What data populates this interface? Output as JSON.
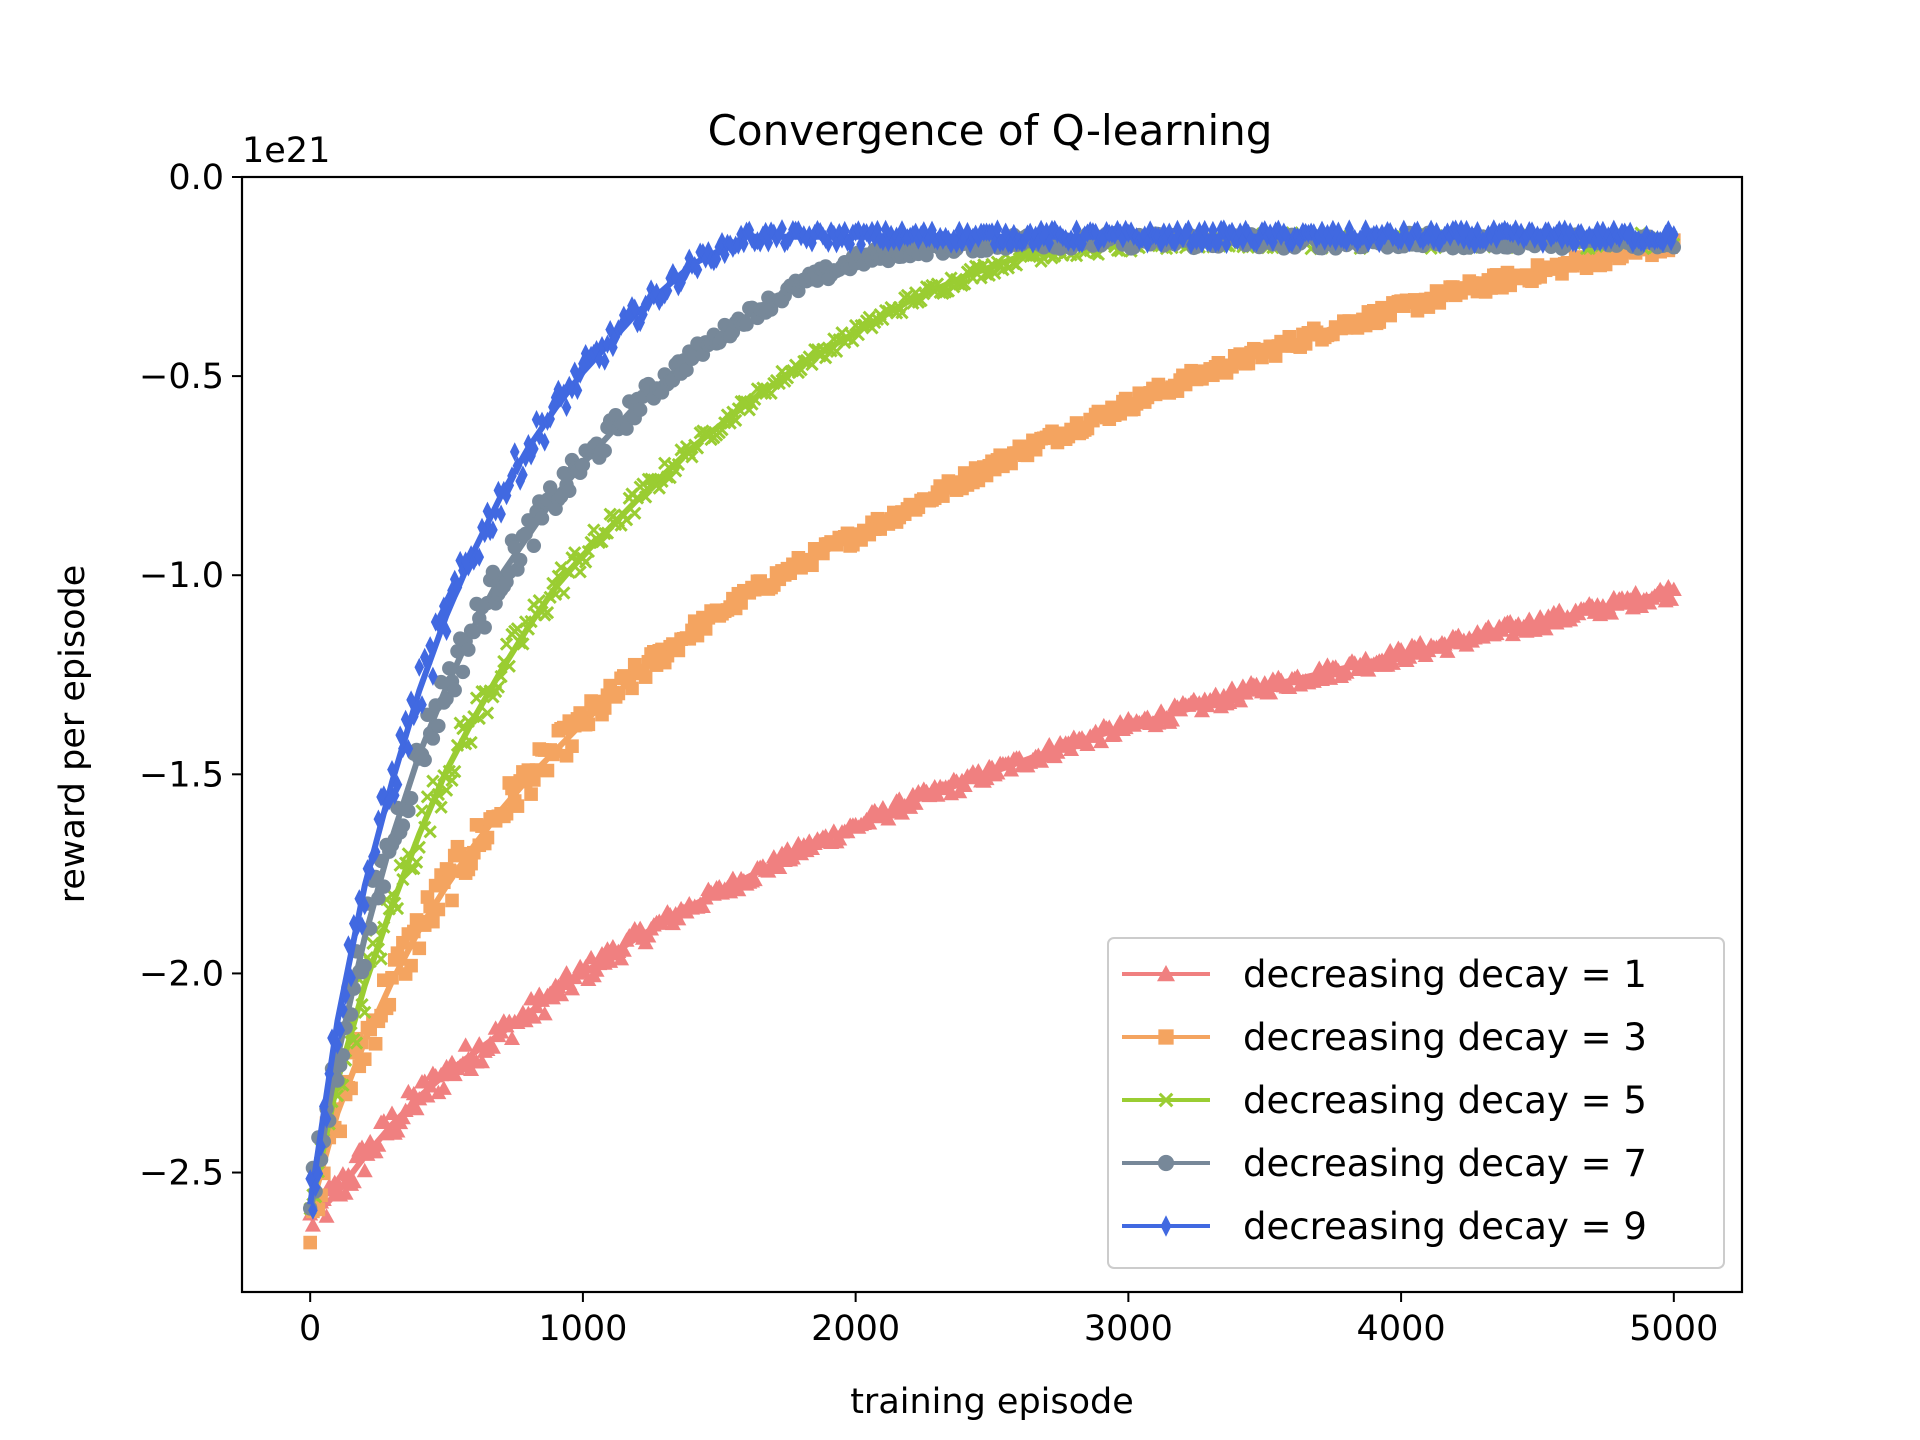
{
  "chart_data": {
    "type": "line",
    "title": "Convergence of Q-learning",
    "xlabel": "training episode",
    "ylabel": "reward per episode",
    "y_scale_label": "1e21",
    "xlim": [
      -250,
      5250
    ],
    "ylim": [
      -2.8,
      0.0
    ],
    "xticks": [
      0,
      1000,
      2000,
      3000,
      4000,
      5000
    ],
    "xtick_labels": [
      "0",
      "1000",
      "2000",
      "3000",
      "4000",
      "5000"
    ],
    "yticks": [
      0.0,
      -0.5,
      -1.0,
      -1.5,
      -2.0,
      -2.5
    ],
    "ytick_labels": [
      "0.0",
      "−0.5",
      "−1.0",
      "−1.5",
      "−2.0",
      "−2.5"
    ],
    "grid": false,
    "legend_position": "lower-right",
    "x": [
      0,
      100,
      200,
      300,
      400,
      500,
      600,
      700,
      800,
      900,
      1000,
      1200,
      1400,
      1600,
      1800,
      2000,
      2200,
      2400,
      2600,
      2800,
      3000,
      3250,
      3500,
      3750,
      4000,
      4250,
      4500,
      4750,
      5000
    ],
    "series": [
      {
        "name": "decreasing decay = 1",
        "color": "#f08080",
        "marker": "triangle",
        "values": [
          -2.62,
          -2.55,
          -2.46,
          -2.38,
          -2.31,
          -2.25,
          -2.2,
          -2.15,
          -2.1,
          -2.05,
          -2.0,
          -1.91,
          -1.83,
          -1.76,
          -1.69,
          -1.63,
          -1.57,
          -1.52,
          -1.47,
          -1.42,
          -1.38,
          -1.33,
          -1.28,
          -1.24,
          -1.2,
          -1.16,
          -1.12,
          -1.08,
          -1.04
        ]
      },
      {
        "name": "decreasing decay = 3",
        "color": "#f4a460",
        "marker": "square",
        "values": [
          -2.6,
          -2.35,
          -2.17,
          -2.02,
          -1.89,
          -1.78,
          -1.68,
          -1.59,
          -1.51,
          -1.44,
          -1.37,
          -1.25,
          -1.14,
          -1.05,
          -0.97,
          -0.9,
          -0.83,
          -0.76,
          -0.69,
          -0.63,
          -0.57,
          -0.5,
          -0.44,
          -0.38,
          -0.33,
          -0.28,
          -0.24,
          -0.2,
          -0.17
        ]
      },
      {
        "name": "decreasing decay = 5",
        "color": "#9acd32",
        "marker": "x",
        "values": [
          -2.6,
          -2.27,
          -2.03,
          -1.83,
          -1.65,
          -1.49,
          -1.36,
          -1.24,
          -1.13,
          -1.03,
          -0.95,
          -0.81,
          -0.68,
          -0.57,
          -0.47,
          -0.39,
          -0.31,
          -0.25,
          -0.2,
          -0.18,
          -0.17,
          -0.16,
          -0.16,
          -0.16,
          -0.16,
          -0.16,
          -0.16,
          -0.16,
          -0.16
        ]
      },
      {
        "name": "decreasing decay = 7",
        "color": "#778899",
        "marker": "circle",
        "values": [
          -2.6,
          -2.21,
          -1.91,
          -1.66,
          -1.45,
          -1.28,
          -1.13,
          -1.0,
          -0.9,
          -0.8,
          -0.72,
          -0.57,
          -0.45,
          -0.35,
          -0.27,
          -0.21,
          -0.18,
          -0.17,
          -0.16,
          -0.16,
          -0.16,
          -0.16,
          -0.16,
          -0.16,
          -0.16,
          -0.16,
          -0.16,
          -0.16,
          -0.16
        ]
      },
      {
        "name": "decreasing decay = 9",
        "color": "#4169e1",
        "marker": "diamond",
        "values": [
          -2.58,
          -2.12,
          -1.78,
          -1.52,
          -1.29,
          -1.1,
          -0.94,
          -0.8,
          -0.68,
          -0.58,
          -0.49,
          -0.34,
          -0.22,
          -0.15,
          -0.15,
          -0.15,
          -0.15,
          -0.15,
          -0.15,
          -0.15,
          -0.15,
          -0.15,
          -0.15,
          -0.15,
          -0.15,
          -0.15,
          -0.15,
          -0.15,
          -0.15
        ]
      }
    ]
  }
}
